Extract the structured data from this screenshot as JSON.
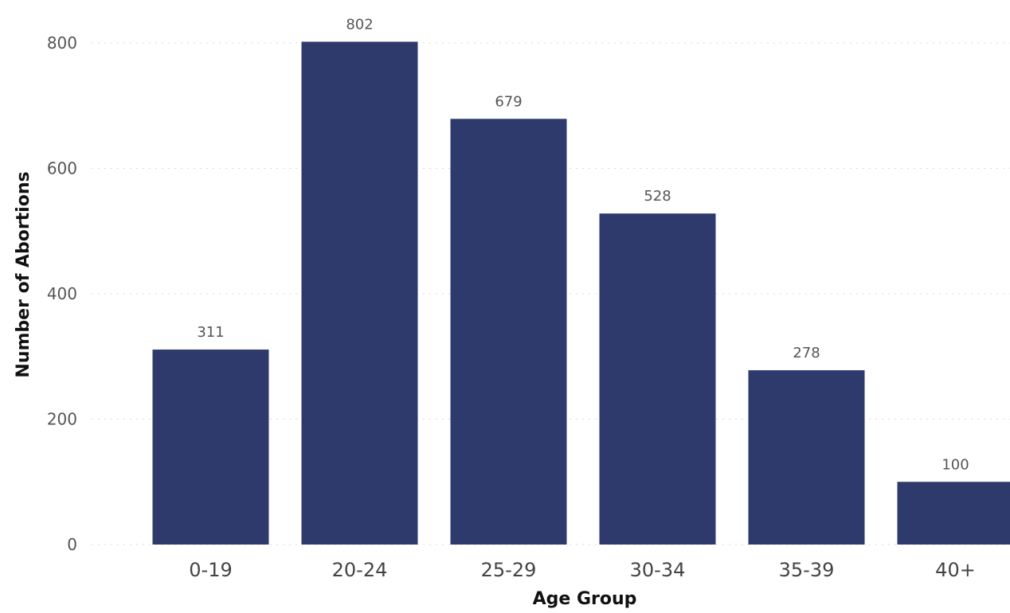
{
  "chart_data": {
    "type": "bar",
    "title": "",
    "xlabel": "Age Group",
    "ylabel": "Number of Abortions",
    "categories": [
      "0-19",
      "20-24",
      "25-29",
      "30-34",
      "35-39",
      "40+"
    ],
    "values": [
      311,
      802,
      679,
      528,
      278,
      100
    ],
    "data_labels": [
      "311",
      "802",
      "679",
      "528",
      "278",
      "100"
    ],
    "yticks": [
      0,
      200,
      400,
      600,
      800
    ],
    "ylim": [
      0,
      800
    ],
    "grid": true,
    "legend": "none",
    "colors": {
      "bar": "#2e3a6b",
      "grid": "#d9d9d9"
    }
  }
}
